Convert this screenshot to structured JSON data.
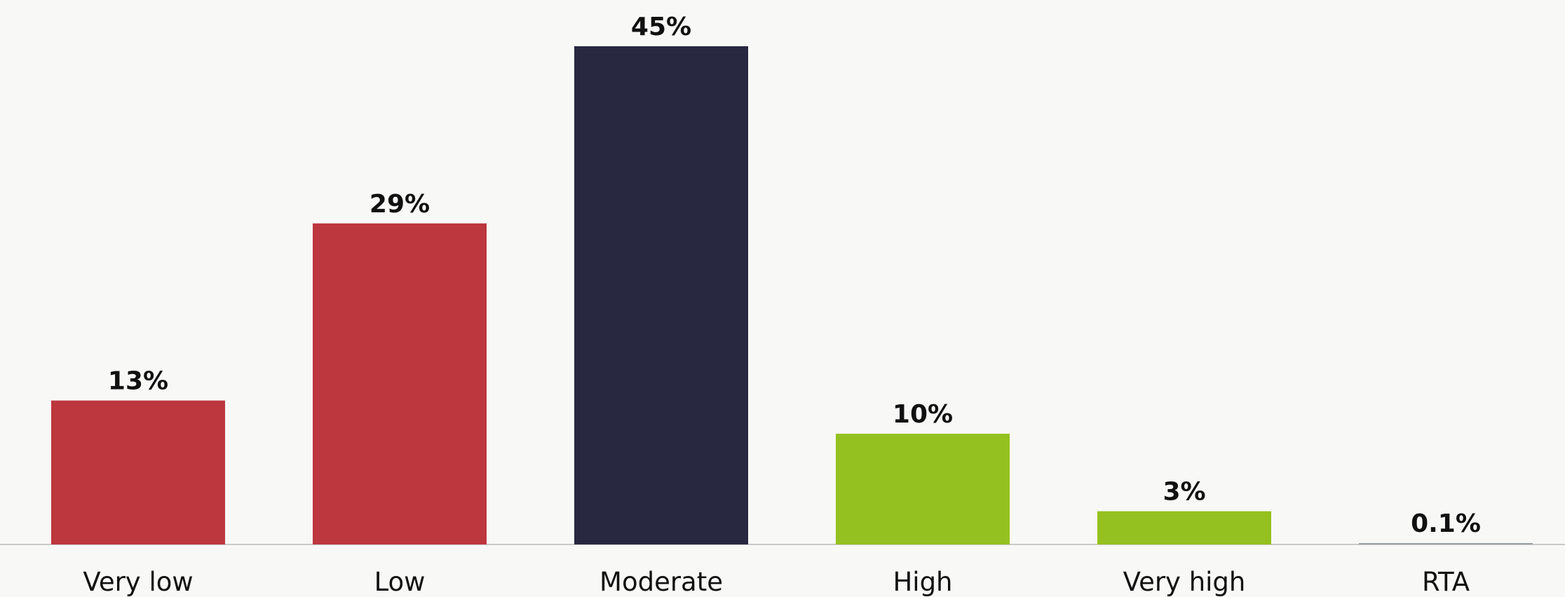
{
  "chart_data": {
    "type": "bar",
    "categories": [
      "Very low",
      "Low",
      "Moderate",
      "High",
      "Very high",
      "RTA"
    ],
    "values": [
      13,
      29,
      45,
      10,
      3,
      0.1
    ],
    "value_labels": [
      "13%",
      "29%",
      "45%",
      "10%",
      "3%",
      "0.1%"
    ],
    "title": "",
    "xlabel": "",
    "ylabel": "",
    "ylim": [
      0,
      45
    ],
    "grid": false,
    "legend": "none",
    "colors": [
      "#bc373e",
      "#bc373e",
      "#282840",
      "#94c11f",
      "#94c11f",
      "#9aa0a6"
    ],
    "baseline_color": "#c8c8c8"
  }
}
